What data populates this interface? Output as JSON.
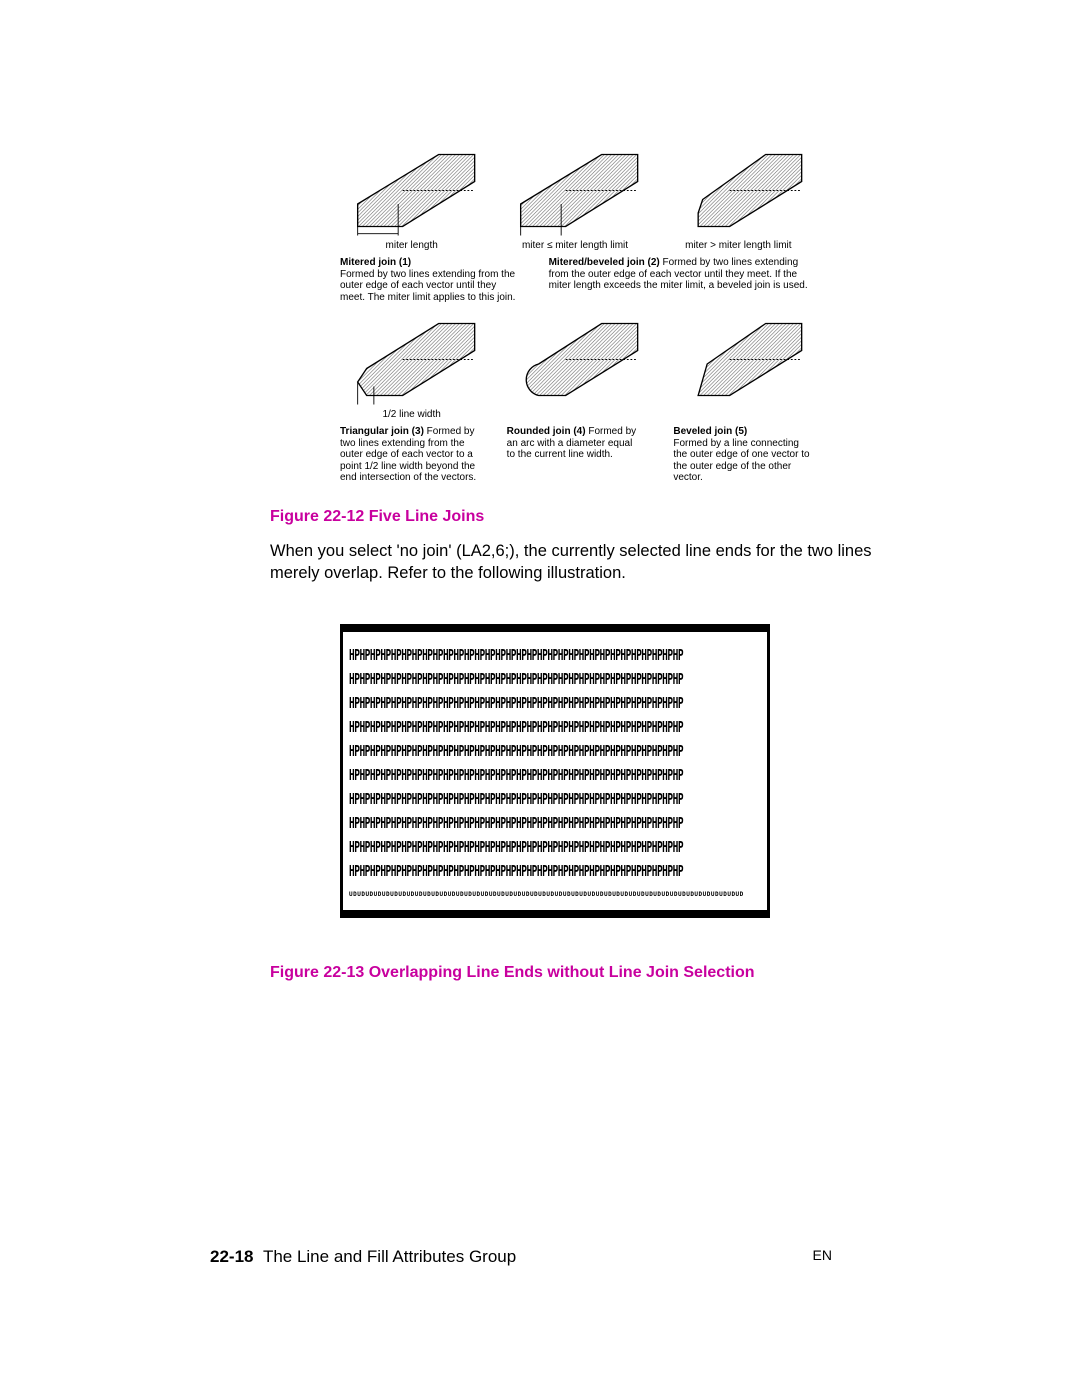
{
  "figure1": {
    "caption": "Figure 22-12 Five Line Joins",
    "row1_label1": "miter length",
    "row1_label2": "miter ≤ miter length   limit",
    "row1_label3": "miter > miter length   limit",
    "desc1_title": "Mitered join (1)",
    "desc1_body": "Formed by two lines extending from the outer edge of each vector until they meet. The miter limit applies to this join.",
    "desc2_title": "Mitered/beveled join (2)",
    "desc2_body": " Formed by two lines extending from the outer edge of each vector until they meet. If the miter length exceeds the miter limit, a beveled join is used.",
    "row2_label1": "1/2 line width",
    "desc3_title": "Triangular join (3)",
    "desc3_body": " Formed by two lines extending from the outer edge of each vector to a point 1/2 line width beyond the end intersection of the vectors.",
    "desc4_title": "Rounded join (4)",
    "desc4_body": " Formed by an arc with a diameter equal to the current line width.",
    "desc5_title": "Beveled join (5)",
    "desc5_body": "Formed by a line connecting the outer edge of one vector to the outer edge of the other vector.",
    "hatch_color": "#404040",
    "stroke_color": "#000000"
  },
  "body_text": "When you select 'no join' (LA2,6;), the currently selected line ends for the two lines merely overlap. Refer to the following illustration.",
  "figure2": {
    "caption": "Figure 22-13 Overlapping Line Ends without Line Join Selection",
    "pattern_char": "HP",
    "pattern_repeat": 32,
    "pattern_lines": 10,
    "bottom_char": "UD",
    "bottom_repeat": 48
  },
  "footer": {
    "page_num": "22-18",
    "section": "The Line and Fill Attributes Group",
    "right": "EN"
  },
  "colors": {
    "caption_color": "#c8009e",
    "text_color": "#000000",
    "background": "#ffffff"
  }
}
